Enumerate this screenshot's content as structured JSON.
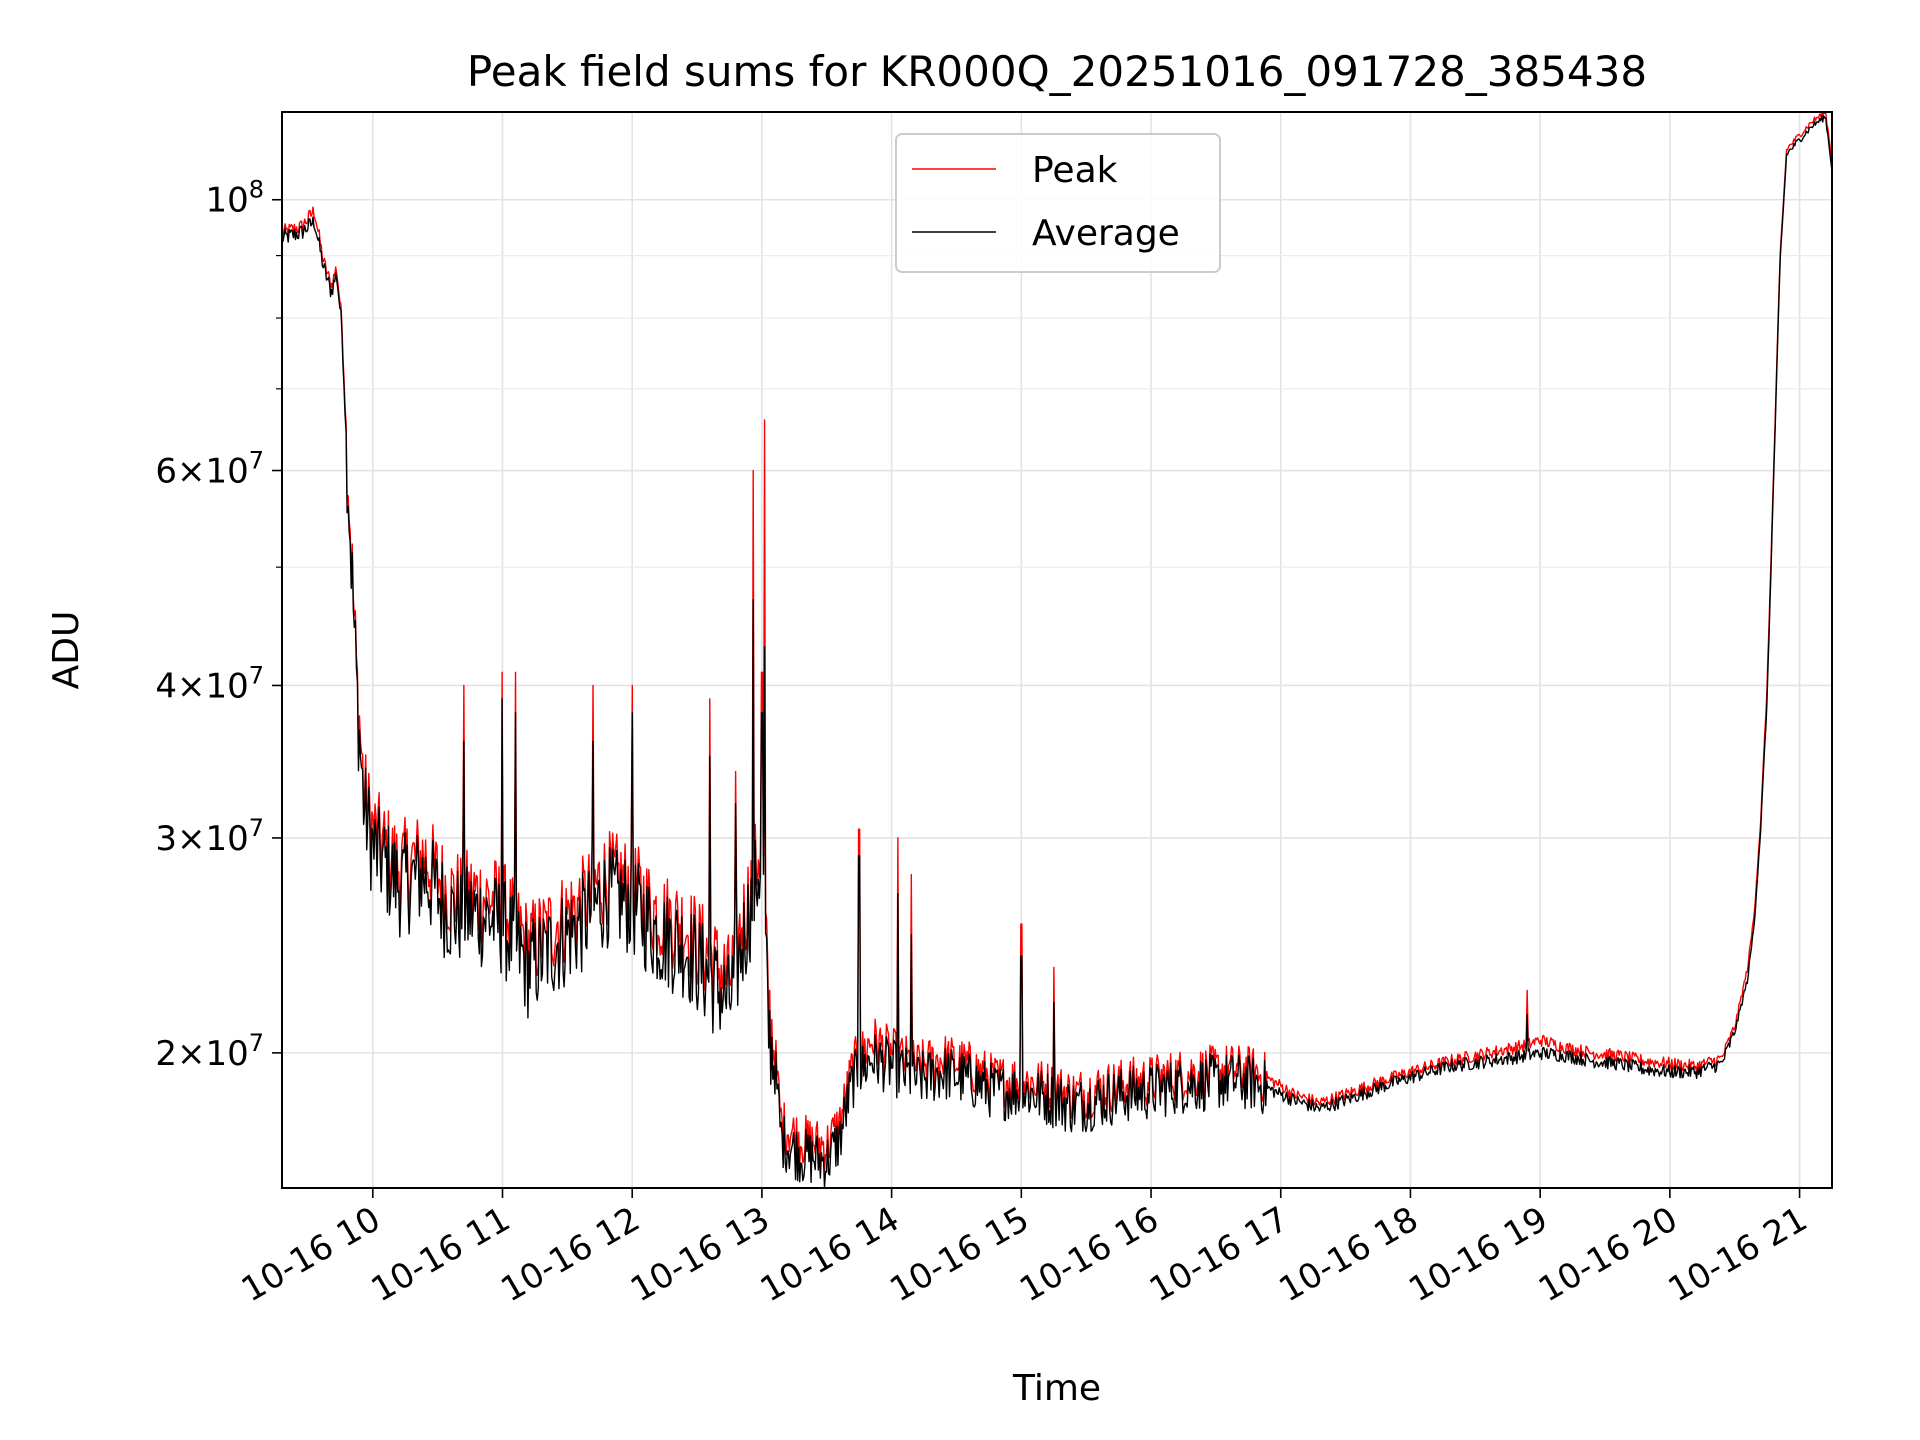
{
  "chart_data": {
    "type": "line",
    "title": "Peak field sums for KR000Q_20251016_091728_385438",
    "xlabel": "Time",
    "ylabel": "ADU",
    "y_scale": "log",
    "ylim": [
      15500000,
      118000000
    ],
    "xlim_hours": [
      9.3,
      21.25
    ],
    "grid": true,
    "legend_position": "upper center",
    "x_ticks": [
      {
        "hour": 10,
        "label": "10-16 10"
      },
      {
        "hour": 11,
        "label": "10-16 11"
      },
      {
        "hour": 12,
        "label": "10-16 12"
      },
      {
        "hour": 13,
        "label": "10-16 13"
      },
      {
        "hour": 14,
        "label": "10-16 14"
      },
      {
        "hour": 15,
        "label": "10-16 15"
      },
      {
        "hour": 16,
        "label": "10-16 16"
      },
      {
        "hour": 17,
        "label": "10-16 17"
      },
      {
        "hour": 18,
        "label": "10-16 18"
      },
      {
        "hour": 19,
        "label": "10-16 19"
      },
      {
        "hour": 20,
        "label": "10-16 20"
      },
      {
        "hour": 21,
        "label": "10-16 21"
      }
    ],
    "y_ticks": [
      {
        "value": 100000000,
        "base": "10",
        "exp": "8"
      },
      {
        "value": 60000000,
        "mant": "6",
        "base": "10",
        "exp": "7"
      },
      {
        "value": 40000000,
        "mant": "4",
        "base": "10",
        "exp": "7"
      },
      {
        "value": 30000000,
        "mant": "3",
        "base": "10",
        "exp": "7"
      },
      {
        "value": 20000000,
        "mant": "2",
        "base": "10",
        "exp": "7"
      }
    ],
    "y_minor_ticks": [
      90000000,
      80000000,
      70000000,
      50000000
    ],
    "series": [
      {
        "name": "Peak",
        "color": "#ff0000",
        "points": [
          [
            9.3,
            94000000
          ],
          [
            9.45,
            95000000
          ],
          [
            9.55,
            98000000
          ],
          [
            9.62,
            89000000
          ],
          [
            9.68,
            85000000
          ],
          [
            9.72,
            88000000
          ],
          [
            9.76,
            80000000
          ],
          [
            9.8,
            63000000
          ],
          [
            9.84,
            50000000
          ],
          [
            9.88,
            40000000
          ],
          [
            9.93,
            33000000
          ],
          [
            10.0,
            30500000
          ],
          [
            10.2,
            28500000
          ],
          [
            10.4,
            29000000
          ],
          [
            10.6,
            27000000
          ],
          [
            10.8,
            27000000
          ],
          [
            11.0,
            26500000
          ],
          [
            11.2,
            24500000
          ],
          [
            11.4,
            25500000
          ],
          [
            11.6,
            26500000
          ],
          [
            11.8,
            28000000
          ],
          [
            12.0,
            27500000
          ],
          [
            12.2,
            26000000
          ],
          [
            12.4,
            25500000
          ],
          [
            12.6,
            24000000
          ],
          [
            12.75,
            23000000
          ],
          [
            12.9,
            27000000
          ],
          [
            13.0,
            30000000
          ],
          [
            13.05,
            22000000
          ],
          [
            13.1,
            20000000
          ],
          [
            13.15,
            17500000
          ],
          [
            13.3,
            17000000
          ],
          [
            13.5,
            16800000
          ],
          [
            13.6,
            17500000
          ],
          [
            13.7,
            19500000
          ],
          [
            13.85,
            20500000
          ],
          [
            14.0,
            20000000
          ],
          [
            14.2,
            19500000
          ],
          [
            14.4,
            19800000
          ],
          [
            14.6,
            19500000
          ],
          [
            14.8,
            19000000
          ],
          [
            15.0,
            19000000
          ],
          [
            15.2,
            18800000
          ],
          [
            15.4,
            18500000
          ],
          [
            15.6,
            18700000
          ],
          [
            15.8,
            18900000
          ],
          [
            16.0,
            19000000
          ],
          [
            16.2,
            19200000
          ],
          [
            16.4,
            19300000
          ],
          [
            16.6,
            19400000
          ],
          [
            16.8,
            19300000
          ],
          [
            17.0,
            18800000
          ],
          [
            17.1,
            18500000
          ],
          [
            17.3,
            18200000
          ],
          [
            17.5,
            18500000
          ],
          [
            17.8,
            19000000
          ],
          [
            18.0,
            19300000
          ],
          [
            18.3,
            19700000
          ],
          [
            18.6,
            20000000
          ],
          [
            18.9,
            20300000
          ],
          [
            19.0,
            20500000
          ],
          [
            19.2,
            20200000
          ],
          [
            19.4,
            20000000
          ],
          [
            19.6,
            19900000
          ],
          [
            19.8,
            19700000
          ],
          [
            20.0,
            19600000
          ],
          [
            20.2,
            19500000
          ],
          [
            20.4,
            19800000
          ],
          [
            20.5,
            21000000
          ],
          [
            20.6,
            23500000
          ],
          [
            20.65,
            26000000
          ],
          [
            20.7,
            31000000
          ],
          [
            20.75,
            40000000
          ],
          [
            20.8,
            60000000
          ],
          [
            20.85,
            90000000
          ],
          [
            20.9,
            110000000
          ],
          [
            21.0,
            113000000
          ],
          [
            21.1,
            116000000
          ],
          [
            21.2,
            118000000
          ],
          [
            21.25,
            108000000
          ]
        ]
      },
      {
        "name": "Average",
        "color": "#000000",
        "points": [
          [
            9.3,
            93000000
          ],
          [
            9.45,
            94000000
          ],
          [
            9.55,
            96000000
          ],
          [
            9.62,
            88000000
          ],
          [
            9.68,
            84000000
          ],
          [
            9.72,
            87000000
          ],
          [
            9.76,
            79000000
          ],
          [
            9.8,
            62000000
          ],
          [
            9.84,
            49000000
          ],
          [
            9.88,
            39000000
          ],
          [
            9.93,
            32000000
          ],
          [
            10.0,
            29500000
          ],
          [
            10.2,
            27500000
          ],
          [
            10.4,
            28000000
          ],
          [
            10.6,
            26000000
          ],
          [
            10.8,
            26000000
          ],
          [
            11.0,
            25500000
          ],
          [
            11.2,
            23500000
          ],
          [
            11.4,
            24500000
          ],
          [
            11.6,
            25500000
          ],
          [
            11.8,
            27000000
          ],
          [
            12.0,
            26500000
          ],
          [
            12.2,
            25000000
          ],
          [
            12.4,
            24500000
          ],
          [
            12.6,
            23000000
          ],
          [
            12.75,
            22000000
          ],
          [
            12.9,
            26000000
          ],
          [
            13.0,
            29000000
          ],
          [
            13.05,
            21000000
          ],
          [
            13.1,
            19500000
          ],
          [
            13.15,
            17000000
          ],
          [
            13.3,
            16500000
          ],
          [
            13.5,
            16300000
          ],
          [
            13.6,
            17000000
          ],
          [
            13.7,
            19000000
          ],
          [
            13.85,
            19800000
          ],
          [
            14.0,
            19500000
          ],
          [
            14.2,
            19000000
          ],
          [
            14.4,
            19300000
          ],
          [
            14.6,
            19000000
          ],
          [
            14.8,
            18600000
          ],
          [
            15.0,
            18600000
          ],
          [
            15.2,
            18400000
          ],
          [
            15.4,
            18100000
          ],
          [
            15.6,
            18300000
          ],
          [
            15.8,
            18500000
          ],
          [
            16.0,
            18600000
          ],
          [
            16.2,
            18800000
          ],
          [
            16.4,
            18900000
          ],
          [
            16.6,
            19000000
          ],
          [
            16.8,
            18900000
          ],
          [
            17.0,
            18500000
          ],
          [
            17.1,
            18300000
          ],
          [
            17.3,
            18000000
          ],
          [
            17.5,
            18300000
          ],
          [
            17.8,
            18800000
          ],
          [
            18.0,
            19100000
          ],
          [
            18.3,
            19500000
          ],
          [
            18.6,
            19700000
          ],
          [
            18.9,
            19900000
          ],
          [
            19.0,
            20000000
          ],
          [
            19.2,
            19900000
          ],
          [
            19.4,
            19700000
          ],
          [
            19.6,
            19600000
          ],
          [
            19.8,
            19400000
          ],
          [
            20.0,
            19300000
          ],
          [
            20.2,
            19300000
          ],
          [
            20.4,
            19600000
          ],
          [
            20.5,
            20800000
          ],
          [
            20.6,
            23000000
          ],
          [
            20.65,
            25500000
          ],
          [
            20.7,
            30500000
          ],
          [
            20.75,
            39000000
          ],
          [
            20.8,
            59000000
          ],
          [
            20.85,
            89000000
          ],
          [
            20.9,
            109000000
          ],
          [
            21.0,
            112000000
          ],
          [
            21.1,
            115000000
          ],
          [
            21.2,
            117000000
          ],
          [
            21.25,
            106000000
          ]
        ]
      }
    ],
    "spikes": [
      {
        "hour": 12.93,
        "peak": 60000000,
        "average": 47000000
      },
      {
        "hour": 13.02,
        "peak": 66000000,
        "average": 43000000
      },
      {
        "hour": 10.7,
        "peak": 40000000,
        "average": 36000000
      },
      {
        "hour": 11.0,
        "peak": 41000000,
        "average": 39000000
      },
      {
        "hour": 11.1,
        "peak": 41000000,
        "average": 38000000
      },
      {
        "hour": 11.7,
        "peak": 40000000,
        "average": 36000000
      },
      {
        "hour": 12.0,
        "peak": 40000000,
        "average": 38000000
      },
      {
        "hour": 12.6,
        "peak": 39000000,
        "average": 35000000
      },
      {
        "hour": 12.8,
        "peak": 34000000,
        "average": 32000000
      },
      {
        "hour": 13.75,
        "peak": 30500000,
        "average": 29000000
      },
      {
        "hour": 14.05,
        "peak": 30000000,
        "average": 27000000
      },
      {
        "hour": 14.15,
        "peak": 28000000,
        "average": 25000000
      },
      {
        "hour": 15.0,
        "peak": 25500000,
        "average": 24000000
      },
      {
        "hour": 15.25,
        "peak": 23500000,
        "average": 22000000
      },
      {
        "hour": 13.0,
        "peak": 41000000,
        "average": 38000000
      },
      {
        "hour": 18.9,
        "peak": 22500000,
        "average": 21500000
      }
    ]
  }
}
